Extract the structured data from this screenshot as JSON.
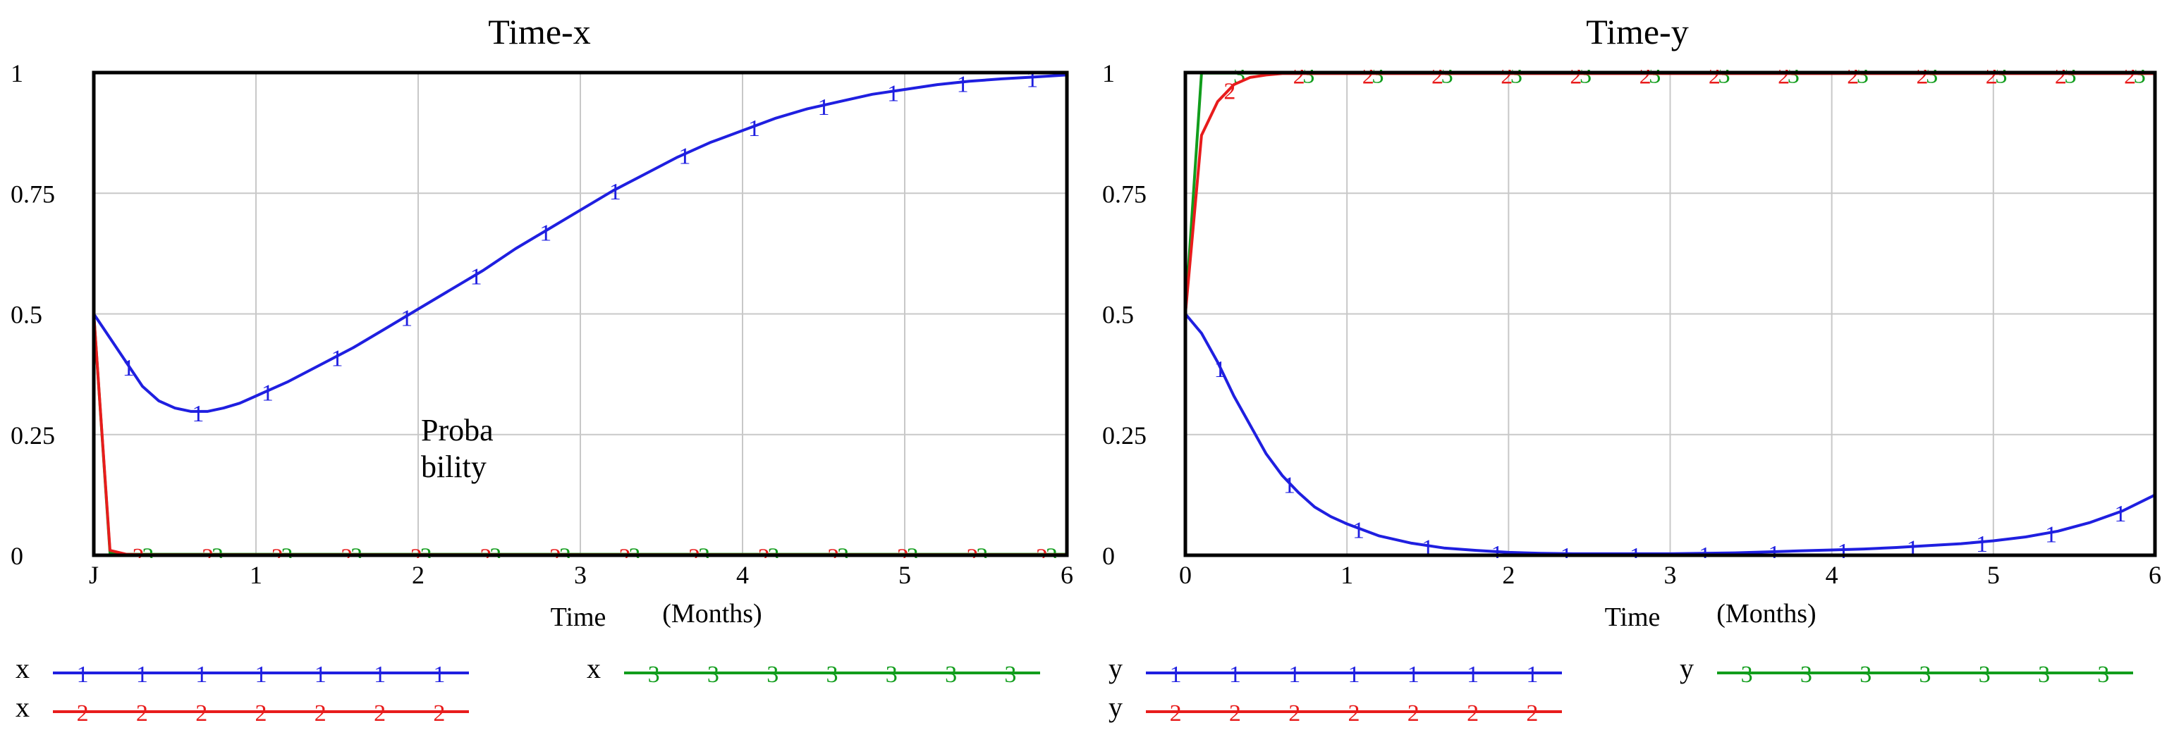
{
  "colors": {
    "series1": "#1f1fe0",
    "series2": "#e81c1c",
    "series3": "#119d1c",
    "grid": "#c8c8c8"
  },
  "chart_data": [
    {
      "type": "line",
      "title": "Time-x",
      "xlabel": "Time",
      "xunit": "(Months)",
      "ylabel": "",
      "annotation": [
        "Proba",
        "bility"
      ],
      "xlim": [
        0,
        6
      ],
      "ylim": [
        0,
        1
      ],
      "xticks": [
        "J",
        "1",
        "2",
        "3",
        "4",
        "5",
        "6"
      ],
      "yticks": [
        "0",
        "0.25",
        "0.5",
        "0.75",
        "1"
      ],
      "grid": true,
      "legend": "bottom",
      "x": [
        0,
        0.1,
        0.2,
        0.3,
        0.4,
        0.5,
        0.6,
        0.7,
        0.8,
        0.9,
        1.0,
        1.2,
        1.4,
        1.6,
        1.8,
        2.0,
        2.2,
        2.4,
        2.6,
        2.8,
        3.0,
        3.2,
        3.4,
        3.6,
        3.8,
        4.0,
        4.2,
        4.4,
        4.6,
        4.8,
        5.0,
        5.2,
        5.4,
        5.6,
        5.8,
        6.0
      ],
      "series": [
        {
          "name": "x",
          "marker": "1",
          "color": "#1f1fe0",
          "values": [
            0.5,
            0.45,
            0.4,
            0.35,
            0.32,
            0.305,
            0.298,
            0.298,
            0.305,
            0.315,
            0.33,
            0.36,
            0.395,
            0.43,
            0.47,
            0.51,
            0.55,
            0.59,
            0.635,
            0.675,
            0.715,
            0.755,
            0.79,
            0.825,
            0.855,
            0.88,
            0.905,
            0.925,
            0.94,
            0.955,
            0.965,
            0.975,
            0.982,
            0.987,
            0.991,
            0.995
          ]
        },
        {
          "name": "x",
          "marker": "2",
          "color": "#e81c1c",
          "values": [
            0.5,
            0.01,
            0.002,
            0.001,
            0.001,
            0.001,
            0.001,
            0.001,
            0.001,
            0.001,
            0.001,
            0.001,
            0.001,
            0.001,
            0.001,
            0.001,
            0.001,
            0.001,
            0.001,
            0.001,
            0.001,
            0.001,
            0.001,
            0.001,
            0.001,
            0.001,
            0.001,
            0.001,
            0.001,
            0.001,
            0.001,
            0.001,
            0.001,
            0.001,
            0.001,
            0.001
          ]
        },
        {
          "name": "x",
          "marker": "3",
          "color": "#119d1c",
          "values": [
            0.5,
            0.005,
            0.002,
            0.002,
            0.002,
            0.002,
            0.002,
            0.002,
            0.002,
            0.002,
            0.002,
            0.002,
            0.002,
            0.002,
            0.002,
            0.002,
            0.002,
            0.002,
            0.002,
            0.002,
            0.002,
            0.002,
            0.002,
            0.002,
            0.002,
            0.002,
            0.002,
            0.002,
            0.002,
            0.002,
            0.002,
            0.002,
            0.002,
            0.002,
            0.002,
            0.002
          ]
        }
      ]
    },
    {
      "type": "line",
      "title": "Time-y",
      "xlabel": "Time",
      "xunit": "(Months)",
      "ylabel": "",
      "xlim": [
        0,
        6
      ],
      "ylim": [
        0,
        1
      ],
      "xticks": [
        "0",
        "1",
        "2",
        "3",
        "4",
        "5",
        "6"
      ],
      "yticks": [
        "0",
        "0.25",
        "0.5",
        "0.75",
        "1"
      ],
      "grid": true,
      "legend": "bottom",
      "x": [
        0,
        0.1,
        0.2,
        0.3,
        0.4,
        0.5,
        0.6,
        0.7,
        0.8,
        0.9,
        1.0,
        1.2,
        1.4,
        1.6,
        1.8,
        2.0,
        2.2,
        2.4,
        2.6,
        2.8,
        3.0,
        3.2,
        3.4,
        3.6,
        3.8,
        4.0,
        4.2,
        4.4,
        4.6,
        4.8,
        5.0,
        5.2,
        5.4,
        5.6,
        5.8,
        6.0
      ],
      "series": [
        {
          "name": "y",
          "marker": "1",
          "color": "#1f1fe0",
          "values": [
            0.5,
            0.46,
            0.4,
            0.33,
            0.27,
            0.21,
            0.165,
            0.13,
            0.1,
            0.08,
            0.065,
            0.04,
            0.025,
            0.015,
            0.01,
            0.006,
            0.004,
            0.003,
            0.003,
            0.003,
            0.003,
            0.004,
            0.005,
            0.007,
            0.009,
            0.011,
            0.013,
            0.016,
            0.02,
            0.024,
            0.03,
            0.038,
            0.05,
            0.068,
            0.092,
            0.125
          ]
        },
        {
          "name": "y",
          "marker": "2",
          "color": "#e81c1c",
          "values": [
            0.5,
            0.87,
            0.94,
            0.975,
            0.99,
            0.995,
            0.998,
            0.998,
            0.998,
            0.998,
            0.998,
            0.998,
            0.998,
            0.998,
            0.998,
            0.998,
            0.998,
            0.998,
            0.998,
            0.998,
            0.998,
            0.998,
            0.998,
            0.998,
            0.998,
            0.998,
            0.998,
            0.998,
            0.998,
            0.998,
            0.998,
            0.998,
            0.998,
            0.998,
            0.998,
            0.998
          ]
        },
        {
          "name": "y",
          "marker": "3",
          "color": "#119d1c",
          "values": [
            0.5,
            0.999,
            0.999,
            0.999,
            0.999,
            0.999,
            0.999,
            0.999,
            0.999,
            0.999,
            0.999,
            0.999,
            0.999,
            0.999,
            0.999,
            0.999,
            0.999,
            0.999,
            0.999,
            0.999,
            0.999,
            0.999,
            0.999,
            0.999,
            0.999,
            0.999,
            0.999,
            0.999,
            0.999,
            0.999,
            0.999,
            0.999,
            0.999,
            0.999,
            0.999,
            0.999
          ]
        }
      ]
    }
  ]
}
